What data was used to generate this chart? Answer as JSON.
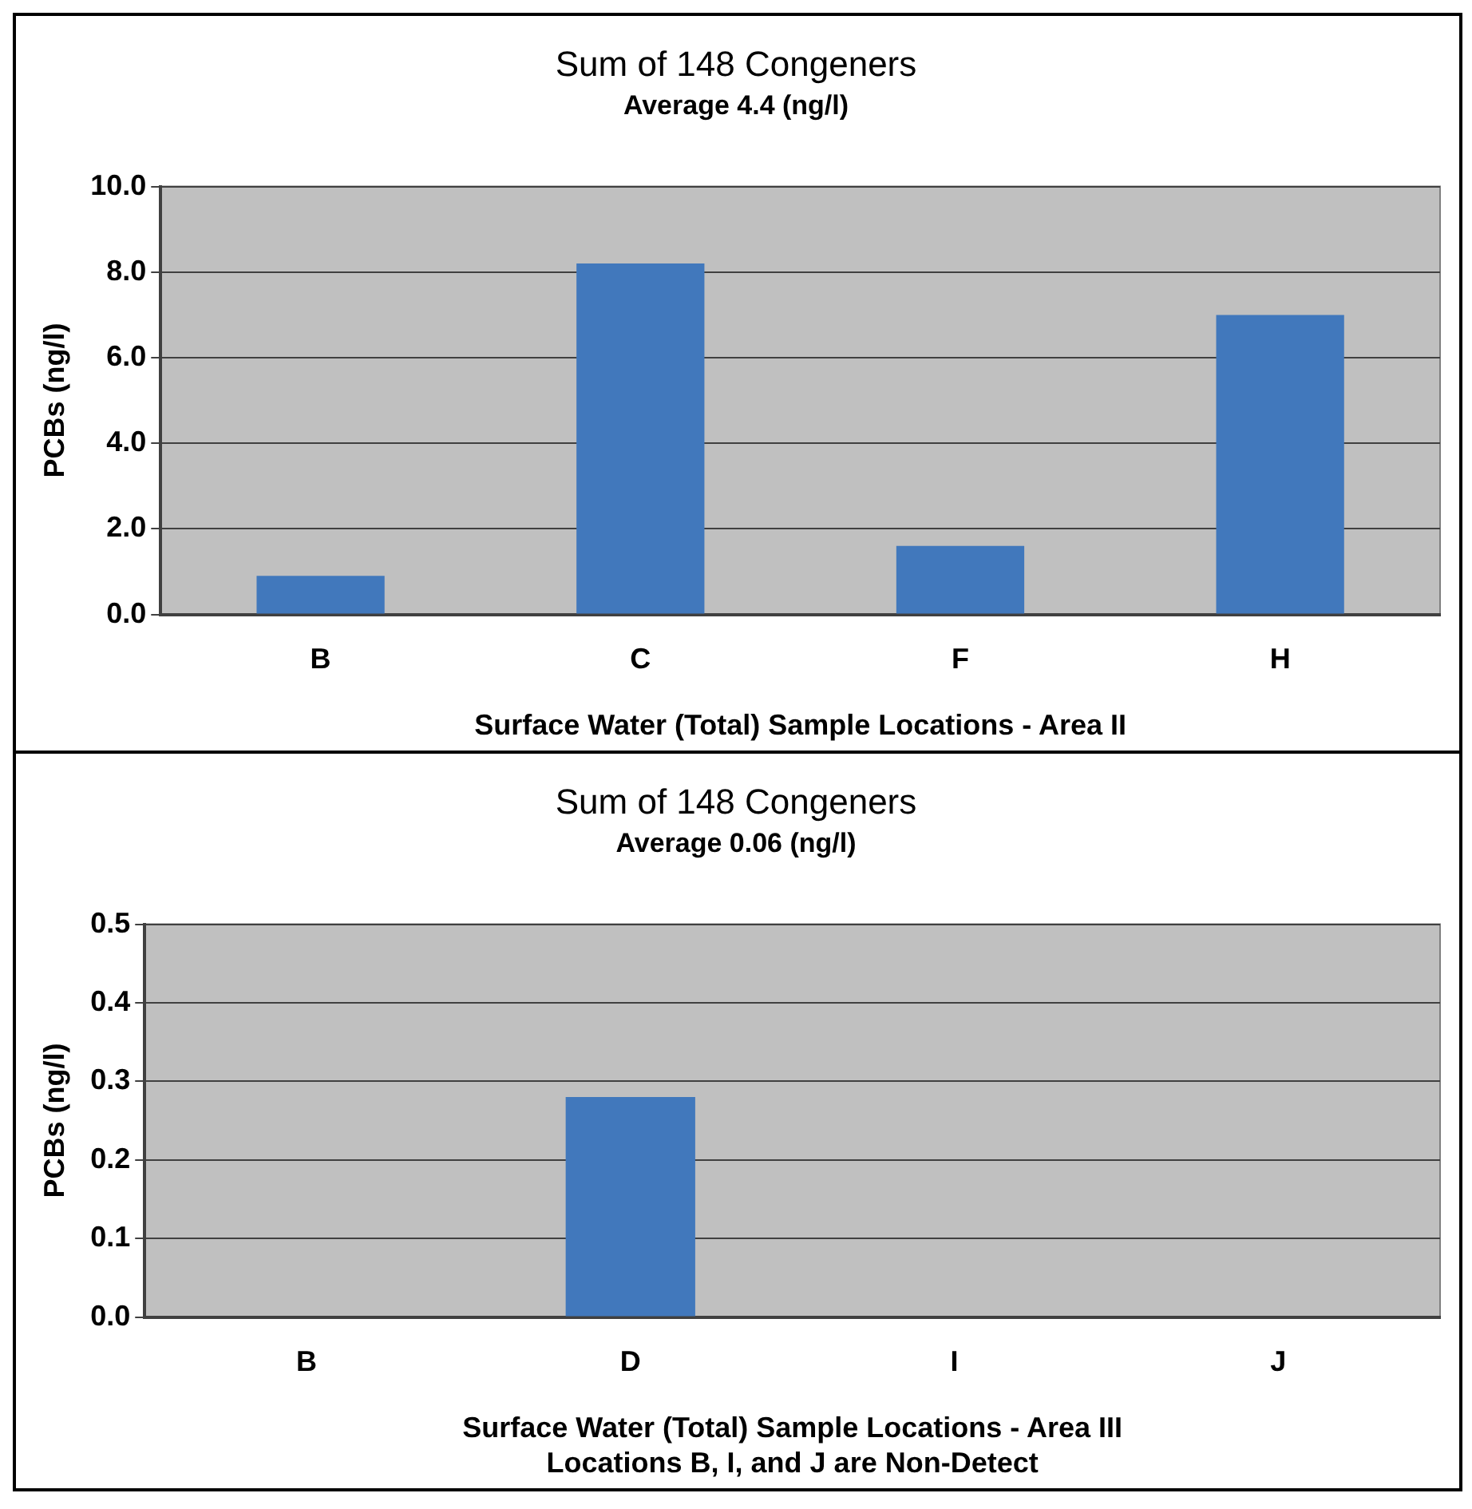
{
  "chart_data": [
    {
      "type": "bar",
      "title": "Sum of 148 Congeners",
      "subtitle": "Average 4.4 (ng/l)",
      "xlabel": "Surface Water (Total) Sample Locations - Area II",
      "ylabel": "PCBs (ng/l)",
      "categories": [
        "B",
        "C",
        "F",
        "H"
      ],
      "values": [
        0.9,
        8.2,
        1.6,
        7.0
      ],
      "color": "#4178bc",
      "ylim": [
        0,
        10
      ],
      "yticks": [
        {
          "value": 0,
          "label": "0.0"
        },
        {
          "value": 2,
          "label": "2.0"
        },
        {
          "value": 4,
          "label": "4.0"
        },
        {
          "value": 6,
          "label": "6.0"
        },
        {
          "value": 8,
          "label": "8.0"
        },
        {
          "value": 10,
          "label": "10.0"
        }
      ],
      "grid": "y",
      "legend": false
    },
    {
      "type": "bar",
      "title": "Sum of 148 Congeners",
      "subtitle": "Average 0.06 (ng/l)",
      "xlabel": "Surface Water (Total) Sample Locations - Area III",
      "ylabel": "PCBs (ng/l)",
      "annotations": [
        "Locations B, I, and J are Non-Detect"
      ],
      "categories": [
        "B",
        "D",
        "I",
        "J"
      ],
      "values": [
        0,
        0.28,
        0,
        0
      ],
      "color": "#4178bc",
      "ylim": [
        0,
        0.5
      ],
      "yticks": [
        {
          "value": 0,
          "label": "0.0"
        },
        {
          "value": 0.1,
          "label": "0.1"
        },
        {
          "value": 0.2,
          "label": "0.2"
        },
        {
          "value": 0.3,
          "label": "0.3"
        },
        {
          "value": 0.4,
          "label": "0.4"
        },
        {
          "value": 0.5,
          "label": "0.5"
        }
      ],
      "grid": "y",
      "legend": false
    }
  ]
}
